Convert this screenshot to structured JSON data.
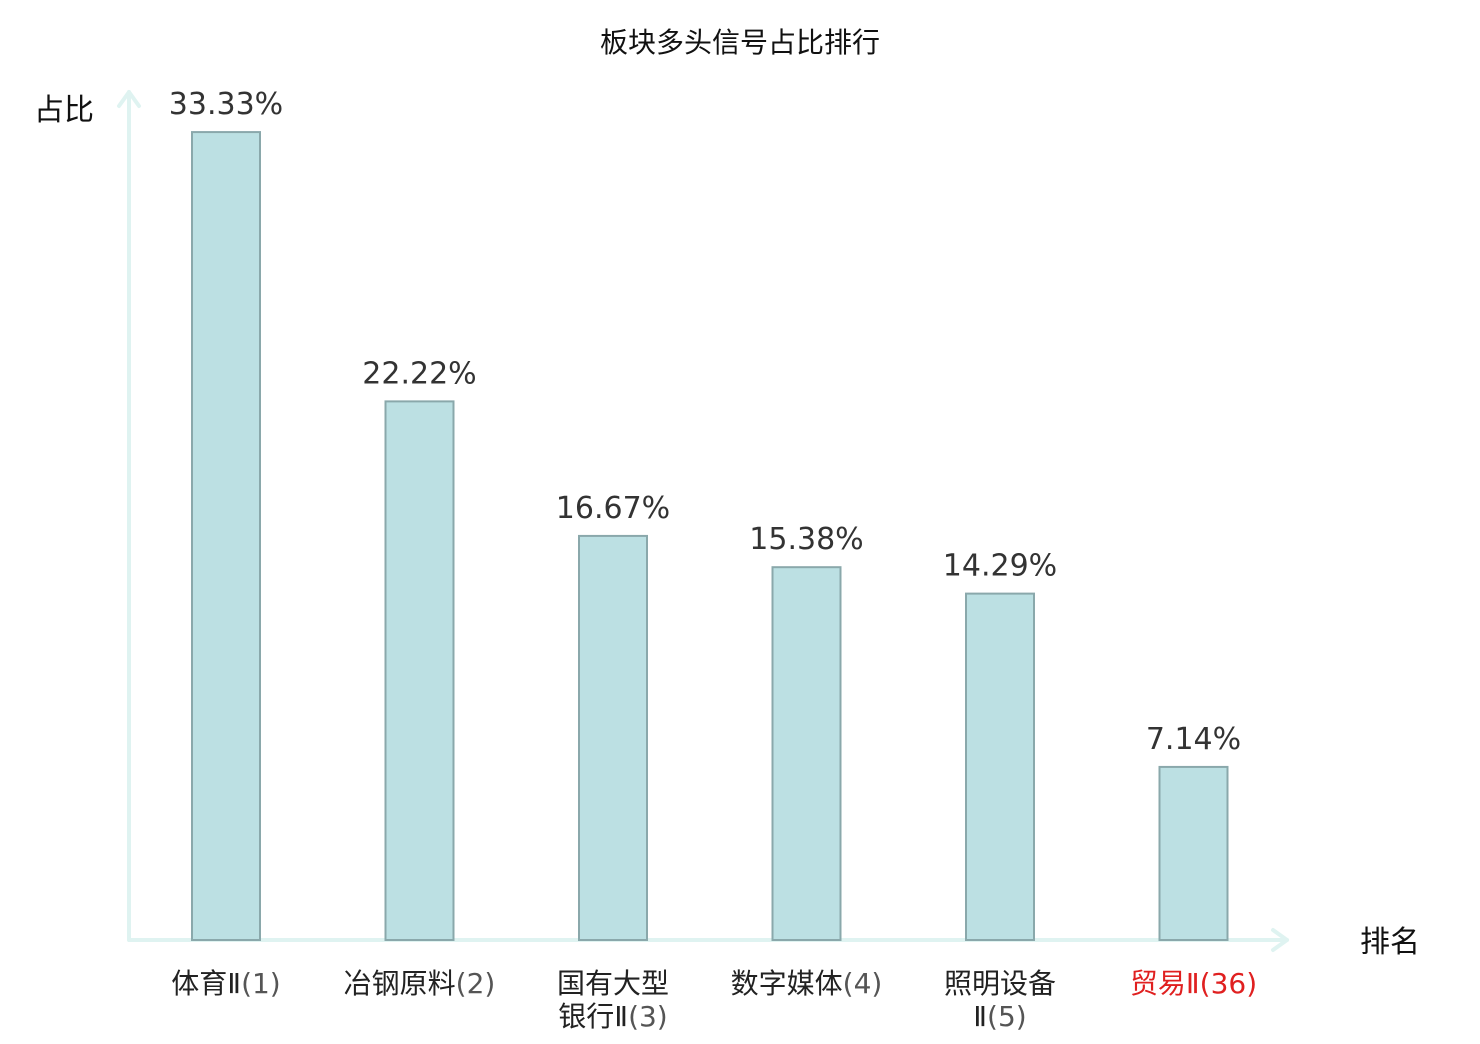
{
  "chart_data": {
    "type": "bar",
    "title": "板块多头信号占比排行",
    "ylabel": "占比",
    "xlabel": "排名",
    "ylim": [
      0,
      35
    ],
    "grid": false,
    "legend": "none",
    "value_suffix": "%",
    "categories": [
      {
        "lines": [
          "体育Ⅱ"
        ],
        "rank": "(1)",
        "highlight": false
      },
      {
        "lines": [
          "冶钢原料"
        ],
        "rank": "(2)",
        "highlight": false
      },
      {
        "lines": [
          "国有大型",
          "银行Ⅱ"
        ],
        "rank": "(3)",
        "highlight": false
      },
      {
        "lines": [
          "数字媒体"
        ],
        "rank": "(4)",
        "highlight": false
      },
      {
        "lines": [
          "照明设备",
          "Ⅱ"
        ],
        "rank": "(5)",
        "highlight": false
      },
      {
        "lines": [
          "贸易Ⅱ"
        ],
        "rank": "(36)",
        "highlight": true
      }
    ],
    "values": [
      33.33,
      22.22,
      16.67,
      15.38,
      14.29,
      7.14
    ],
    "value_labels": [
      "33.33%",
      "22.22%",
      "16.67%",
      "15.38%",
      "14.29%",
      "7.14%"
    ],
    "colors": {
      "bar_fill": "#bce0e3",
      "bar_stroke": "#8aa8ab",
      "axis": "#dff3f1",
      "highlight_text": "#e02020"
    }
  }
}
